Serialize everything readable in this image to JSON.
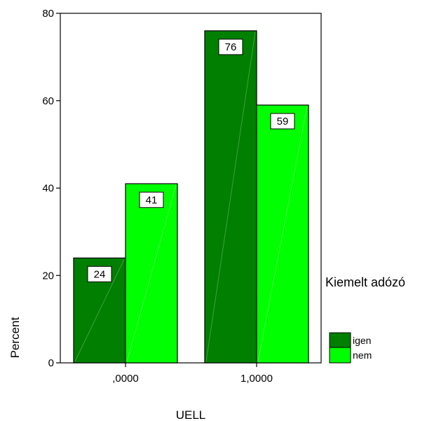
{
  "chart_data": {
    "type": "bar",
    "categories": [
      ",0000",
      "1,0000"
    ],
    "series": [
      {
        "name": "igen",
        "values": [
          24,
          76
        ],
        "color": "#007f00"
      },
      {
        "name": "nem",
        "values": [
          41,
          59
        ],
        "color": "#00ff00"
      }
    ],
    "data_labels": [
      [
        "24",
        "76"
      ],
      [
        "41",
        "59"
      ]
    ],
    "xlabel": "UELL",
    "ylabel": "Percent",
    "ylim": [
      0,
      80
    ],
    "y_ticks": [
      0,
      20,
      40,
      60,
      80
    ],
    "y_tick_labels": [
      "0",
      "20",
      "40",
      "60",
      "80"
    ],
    "grid": false,
    "legend": {
      "title": "Kiemelt adózó",
      "placement": "right"
    },
    "title": ""
  }
}
